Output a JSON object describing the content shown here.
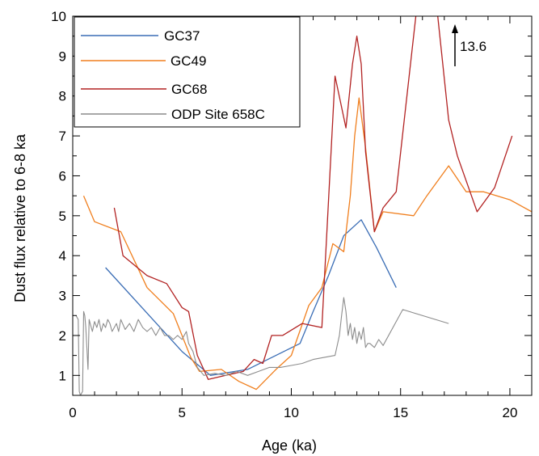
{
  "chart_data": {
    "type": "line",
    "xlabel": "Age (ka)",
    "ylabel": "Dust flux relative to 6-8 ka",
    "xlim": [
      0,
      21
    ],
    "ylim": [
      0.5,
      10
    ],
    "x_ticks": [
      0,
      5,
      10,
      15,
      20
    ],
    "y_ticks": [
      1,
      2,
      3,
      4,
      5,
      6,
      7,
      8,
      9,
      10
    ],
    "grid": false,
    "legend_position": "top-left",
    "series": [
      {
        "name": "GC37",
        "color": "#3a6db5",
        "x": [
          1.5,
          5.0,
          6.3,
          8.0,
          10.4,
          11.0,
          11.7,
          12.4,
          13.2,
          13.9,
          14.8
        ],
        "y": [
          3.7,
          1.6,
          1.0,
          1.15,
          1.8,
          2.6,
          3.5,
          4.5,
          4.9,
          4.2,
          3.2
        ]
      },
      {
        "name": "GC49",
        "color": "#f07f1e",
        "x": [
          0.5,
          1.0,
          2.2,
          3.4,
          4.6,
          5.4,
          5.8,
          6.8,
          7.6,
          8.4,
          9.3,
          10.0,
          10.8,
          11.4,
          11.9,
          12.4,
          12.7,
          12.9,
          13.1,
          13.4,
          13.8,
          14.2,
          15.6,
          16.2,
          17.2,
          18.0,
          18.8,
          20.0,
          21.0
        ],
        "y": [
          5.5,
          4.85,
          4.6,
          3.2,
          2.55,
          1.45,
          1.1,
          1.15,
          0.85,
          0.65,
          1.15,
          1.5,
          2.75,
          3.2,
          4.3,
          4.1,
          5.5,
          7.0,
          7.95,
          6.7,
          4.6,
          5.1,
          5.0,
          5.5,
          6.25,
          5.6,
          5.6,
          5.4,
          5.1
        ]
      },
      {
        "name": "GC68",
        "color": "#b22222",
        "x": [
          1.9,
          2.3,
          3.4,
          4.3,
          5.0,
          5.3,
          5.7,
          6.2,
          7.0,
          7.8,
          8.3,
          8.7,
          9.1,
          9.6,
          10.5,
          11.4,
          12.0,
          12.5,
          12.8,
          13.0,
          13.2,
          13.4,
          13.8,
          14.2,
          14.8,
          15.7,
          16.3,
          16.7,
          17.2,
          17.6,
          18.5,
          19.3,
          20.1
        ],
        "y": [
          5.2,
          4.0,
          3.5,
          3.3,
          2.7,
          2.6,
          1.5,
          0.9,
          1.0,
          1.1,
          1.4,
          1.3,
          2.0,
          2.0,
          2.3,
          2.2,
          8.5,
          7.2,
          8.8,
          9.5,
          8.8,
          6.6,
          4.6,
          5.2,
          5.6,
          10.0,
          13.6,
          10.0,
          7.4,
          6.5,
          5.1,
          5.7,
          7.0
        ]
      },
      {
        "name": "ODP Site 658C",
        "color": "#8c8c8c",
        "x": [
          0.15,
          0.25,
          0.3,
          0.35,
          0.45,
          0.5,
          0.55,
          0.6,
          0.7,
          0.75,
          0.8,
          0.9,
          1.0,
          1.1,
          1.2,
          1.3,
          1.4,
          1.5,
          1.6,
          1.7,
          1.8,
          1.9,
          2.0,
          2.1,
          2.2,
          2.4,
          2.6,
          2.8,
          3.0,
          3.2,
          3.4,
          3.6,
          3.8,
          4.0,
          4.2,
          4.4,
          4.6,
          4.8,
          5.0,
          5.2,
          5.3,
          5.5,
          5.7,
          6.0,
          6.5,
          7.0,
          7.5,
          8.0,
          8.5,
          9.0,
          9.5,
          10.0,
          10.5,
          11.0,
          11.5,
          12.0,
          12.2,
          12.3,
          12.4,
          12.5,
          12.6,
          12.7,
          12.8,
          12.9,
          13.0,
          13.1,
          13.2,
          13.3,
          13.4,
          13.5,
          13.6,
          13.8,
          14.0,
          14.2,
          15.1,
          17.2
        ],
        "y": [
          2.5,
          2.4,
          0.6,
          0.5,
          0.6,
          2.6,
          2.5,
          2.2,
          1.15,
          2.4,
          2.3,
          2.1,
          2.35,
          2.2,
          2.4,
          2.1,
          2.3,
          2.2,
          2.4,
          2.3,
          2.1,
          2.2,
          2.3,
          2.1,
          2.4,
          2.15,
          2.3,
          2.1,
          2.4,
          2.2,
          2.1,
          2.2,
          2.0,
          2.2,
          2.0,
          2.0,
          1.9,
          2.0,
          1.9,
          2.1,
          1.8,
          1.6,
          1.2,
          1.0,
          1.05,
          1.0,
          1.1,
          1.0,
          1.1,
          1.2,
          1.2,
          1.25,
          1.3,
          1.4,
          1.45,
          1.5,
          2.0,
          2.5,
          2.95,
          2.6,
          2.0,
          2.3,
          1.9,
          2.2,
          1.8,
          2.1,
          1.9,
          2.2,
          1.7,
          1.8,
          1.8,
          1.7,
          1.9,
          1.75,
          2.65,
          2.3
        ]
      }
    ],
    "annotations": [
      {
        "text": "13.6",
        "x": 17.3,
        "y": 9.2,
        "arrow": "up"
      }
    ]
  }
}
